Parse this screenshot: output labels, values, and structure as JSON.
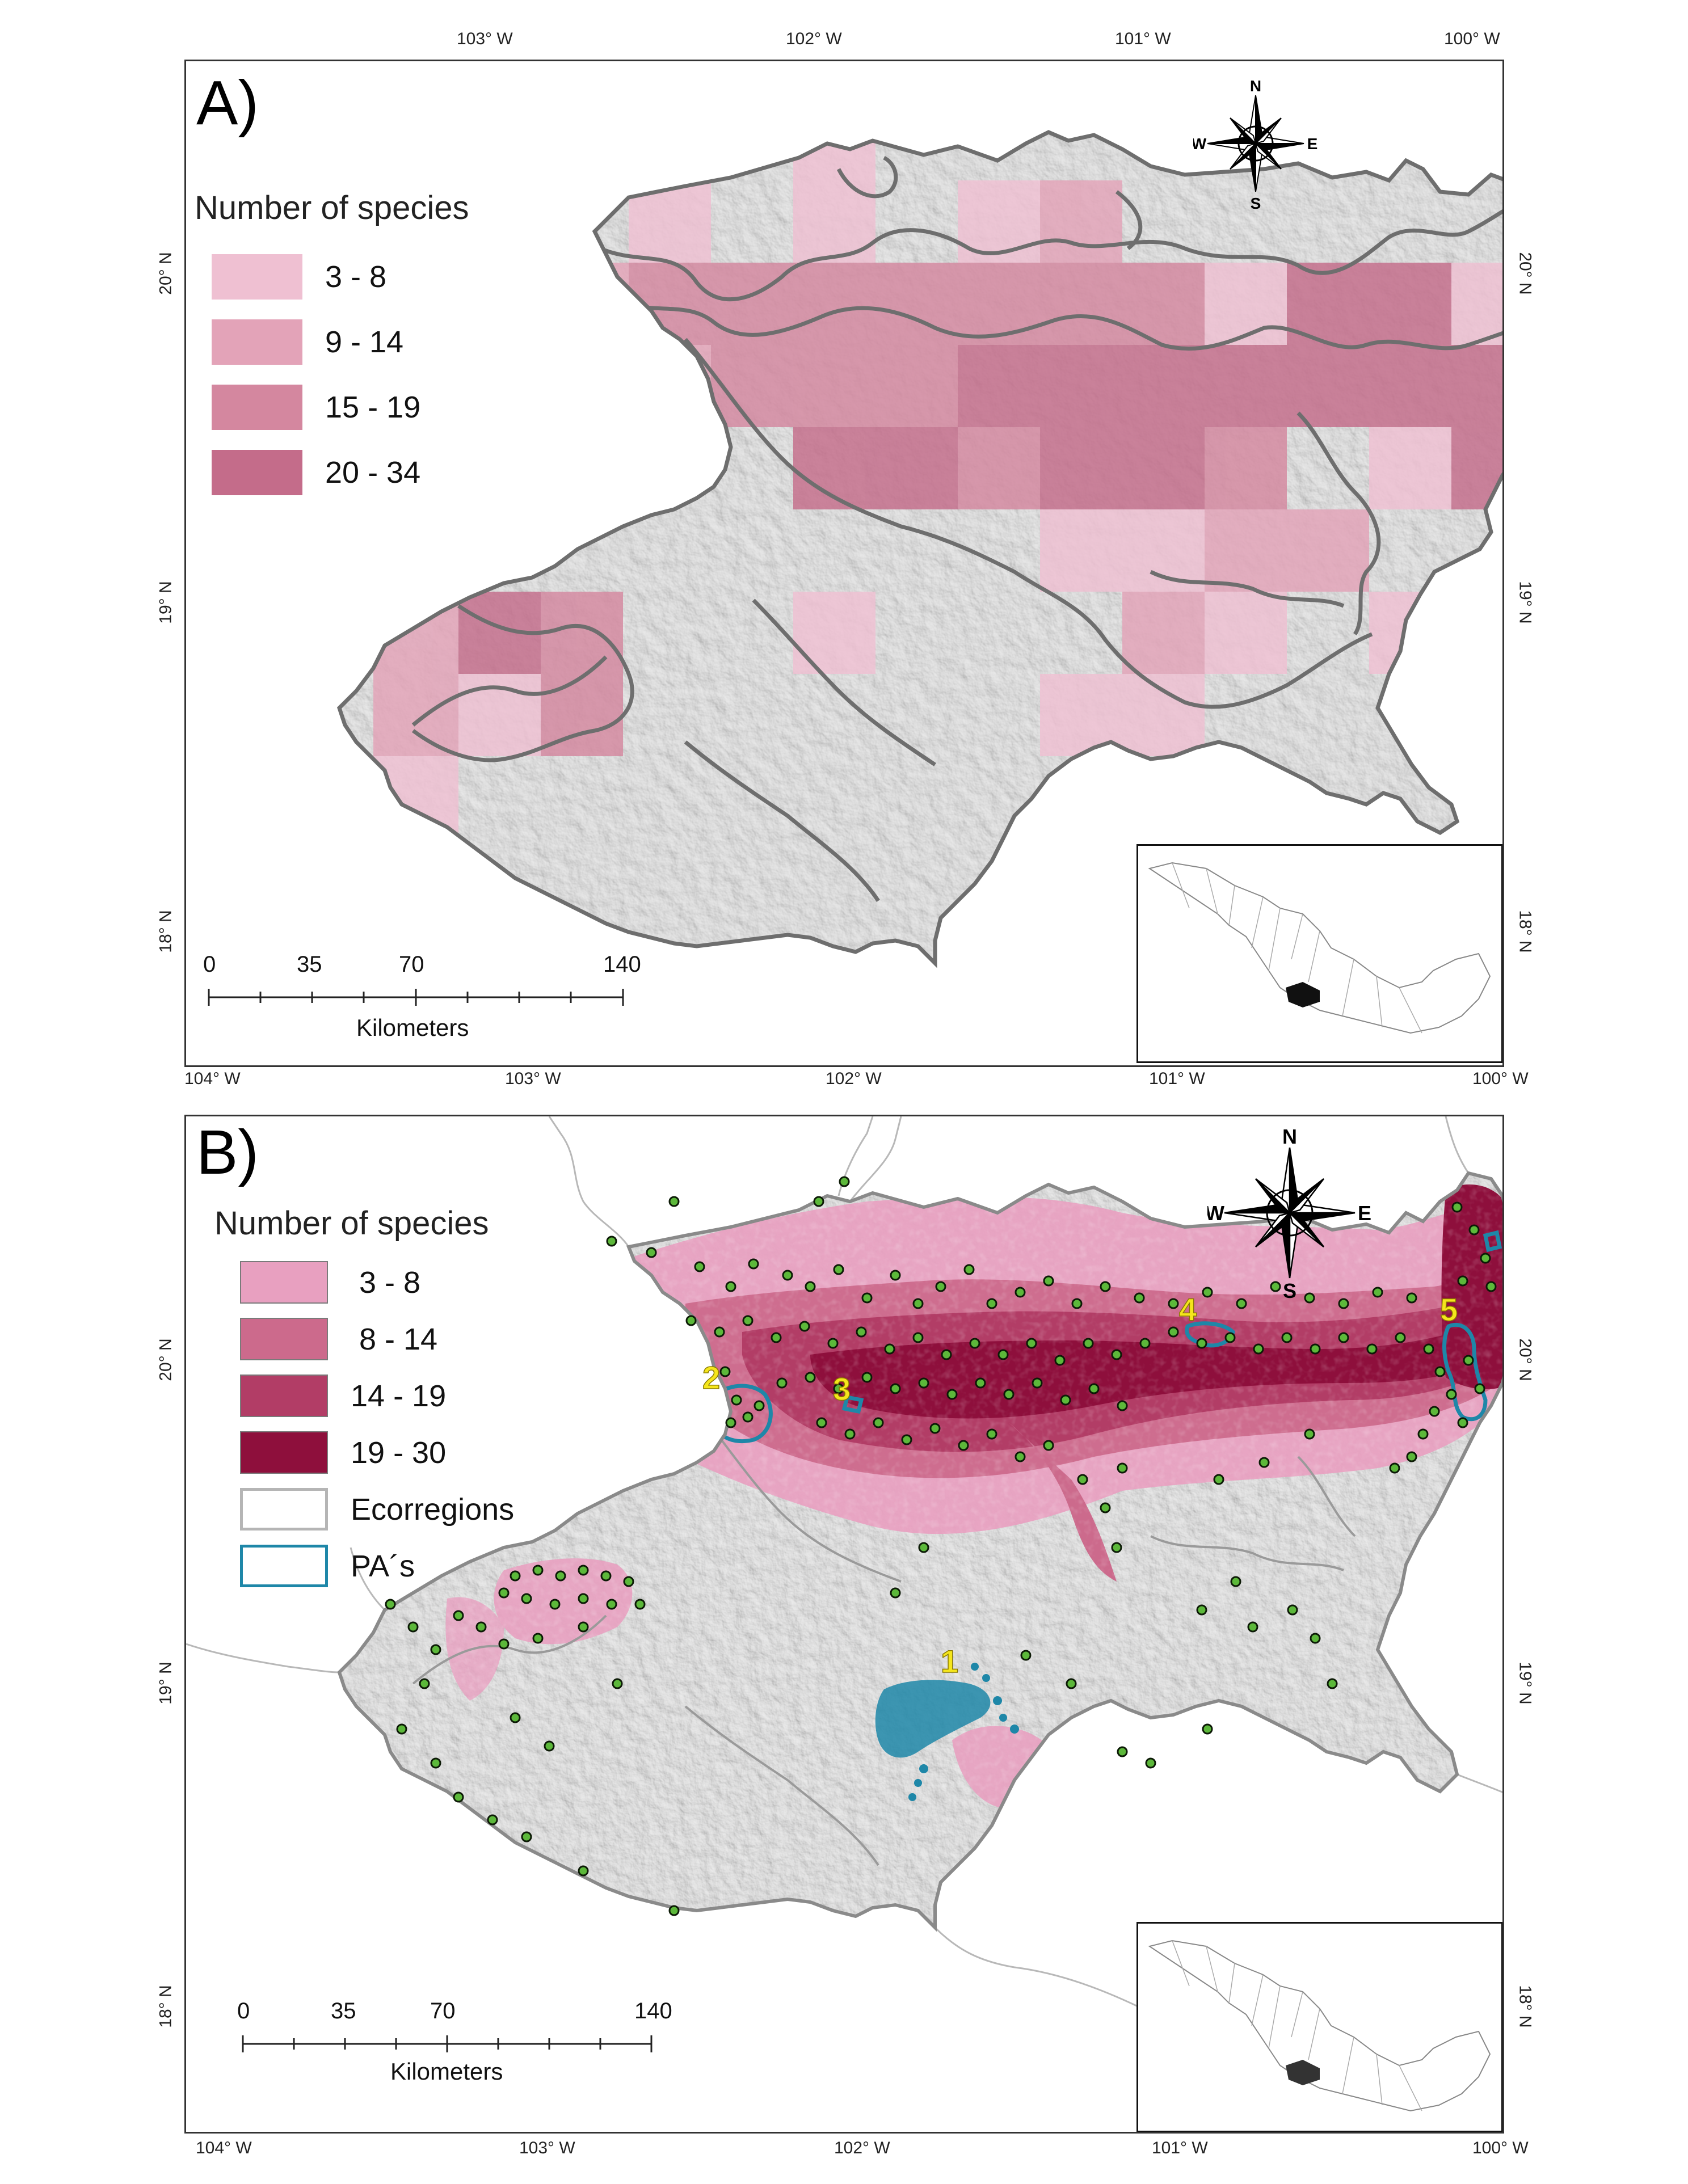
{
  "panel_a": {
    "label": "A)",
    "legend_title": "Number of species",
    "legend": [
      {
        "label": "3 - 8",
        "color": "#efc0d2"
      },
      {
        "label": "9 - 14",
        "color": "#e3a3b8"
      },
      {
        "label": "15 - 19",
        "color": "#d4879f"
      },
      {
        "label": "20 - 34",
        "color": "#c46c8a"
      }
    ],
    "top_ticks": [
      "103° W",
      "102° W",
      "101° W",
      "100° W"
    ],
    "bottom_ticks": [
      "104° W",
      "103° W",
      "102° W",
      "101° W",
      "100° W"
    ],
    "left_ticks": [
      "20° N",
      "19° N",
      "18° N"
    ],
    "right_ticks": [
      "20° N",
      "19° N",
      "18° N"
    ],
    "scale": {
      "numbers": [
        "0",
        "35",
        "70",
        "140"
      ],
      "unit": "Kilometers"
    },
    "compass": {
      "n": "N",
      "s": "S",
      "e": "E",
      "w": "W"
    }
  },
  "panel_b": {
    "label": "B)",
    "legend_title": "Number of species",
    "legend": [
      {
        "label": " 3 - 8",
        "color": "#e8a0c0"
      },
      {
        "label": " 8 - 14",
        "color": "#cc6a8c"
      },
      {
        "label": "14 - 19",
        "color": "#b23d66"
      },
      {
        "label": "19 - 30",
        "color": "#8e0f3c"
      },
      {
        "label": "Ecorregions",
        "color": "#ffffff",
        "border": "#b5b5b5"
      },
      {
        "label": "PA´s",
        "color": "#ffffff",
        "border": "#1e87a8"
      }
    ],
    "bottom_ticks": [
      "104° W",
      "103° W",
      "102° W",
      "101° W",
      "100° W"
    ],
    "left_ticks": [
      "20° N",
      "19° N",
      "18° N"
    ],
    "right_ticks": [
      "20° N",
      "19° N",
      "18° N"
    ],
    "scale": {
      "numbers": [
        "0",
        "35",
        "70",
        "140"
      ],
      "unit": "Kilometers"
    },
    "compass": {
      "n": "N",
      "s": "S",
      "e": "E",
      "w": "W"
    },
    "pa_labels": [
      "1",
      "2",
      "3",
      "4",
      "5"
    ]
  },
  "colors": {
    "relief_gray": "#cfcfcf",
    "relief_dark": "#9a9a9a",
    "ecoregion_line": "#6e6e6e",
    "pa_line": "#1e87a8",
    "point_fill": "#5cb83a",
    "pa_label": "#f5e61c"
  },
  "icons": [
    "compass-rose-icon"
  ]
}
